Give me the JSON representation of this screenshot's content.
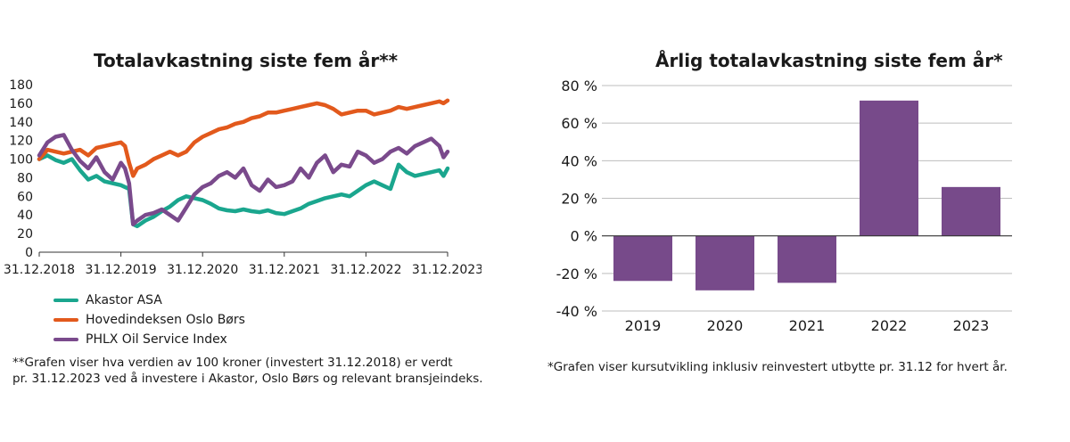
{
  "colors": {
    "teal": "#1aa68e",
    "orange": "#e2591c",
    "purple": "#7a4a8c",
    "bar": "#774a8a",
    "grid": "#bdbdbd",
    "axis": "#333333"
  },
  "left_chart": {
    "title": "Totalavkastning siste fem år**",
    "legend": [
      "Akastor ASA",
      "Hovedindeksen Oslo Børs",
      "PHLX Oil Service Index"
    ],
    "note_line1": "**Grafen viser hva verdien av 100 kroner (investert 31.12.2018) er verdt",
    "note_line2": "pr. 31.12.2023 ved å investere i Akastor, Oslo Børs og relevant bransjeindeks."
  },
  "right_chart": {
    "title": "Årlig totalavkastning siste fem år*",
    "note": "*Grafen viser kursutvikling inklusiv reinvestert utbytte pr. 31.12 for hvert år."
  },
  "chart_data": [
    {
      "type": "line",
      "title": "Totalavkastning siste fem år**",
      "x_labels": [
        "31.12.2018",
        "31.12.2019",
        "31.12.2020",
        "31.12.2021",
        "31.12.2022",
        "31.12.2023"
      ],
      "y_ticks": [
        0,
        20,
        40,
        60,
        80,
        100,
        120,
        140,
        160,
        180
      ],
      "ylim": [
        0,
        180
      ],
      "xlim": [
        0,
        5
      ],
      "series": [
        {
          "name": "Akastor ASA",
          "color": "#1aa68e",
          "x": [
            0,
            0.1,
            0.2,
            0.3,
            0.4,
            0.5,
            0.6,
            0.7,
            0.8,
            0.9,
            1.0,
            1.05,
            1.1,
            1.15,
            1.2,
            1.3,
            1.4,
            1.5,
            1.6,
            1.7,
            1.8,
            1.9,
            2.0,
            2.1,
            2.2,
            2.3,
            2.4,
            2.5,
            2.6,
            2.7,
            2.8,
            2.9,
            3.0,
            3.1,
            3.2,
            3.3,
            3.4,
            3.5,
            3.6,
            3.7,
            3.8,
            3.9,
            4.0,
            4.1,
            4.2,
            4.3,
            4.4,
            4.5,
            4.6,
            4.7,
            4.8,
            4.9,
            4.95,
            5.0
          ],
          "values": [
            100,
            104,
            99,
            96,
            100,
            88,
            78,
            82,
            76,
            74,
            72,
            70,
            68,
            30,
            28,
            34,
            38,
            44,
            49,
            56,
            60,
            58,
            56,
            52,
            47,
            45,
            44,
            46,
            44,
            43,
            45,
            42,
            41,
            44,
            47,
            52,
            55,
            58,
            60,
            62,
            60,
            66,
            72,
            76,
            72,
            68,
            94,
            86,
            82,
            84,
            86,
            88,
            82,
            90
          ]
        },
        {
          "name": "Hovedindeksen Oslo Børs",
          "color": "#e2591c",
          "x": [
            0,
            0.1,
            0.2,
            0.3,
            0.4,
            0.5,
            0.6,
            0.7,
            0.8,
            0.9,
            1.0,
            1.05,
            1.1,
            1.15,
            1.2,
            1.3,
            1.4,
            1.5,
            1.6,
            1.7,
            1.8,
            1.9,
            2.0,
            2.1,
            2.2,
            2.3,
            2.4,
            2.5,
            2.6,
            2.7,
            2.8,
            2.9,
            3.0,
            3.1,
            3.2,
            3.3,
            3.4,
            3.5,
            3.6,
            3.7,
            3.8,
            3.9,
            4.0,
            4.1,
            4.2,
            4.3,
            4.4,
            4.5,
            4.6,
            4.7,
            4.8,
            4.9,
            4.95,
            5.0
          ],
          "values": [
            100,
            110,
            108,
            106,
            108,
            110,
            104,
            112,
            114,
            116,
            118,
            114,
            96,
            82,
            90,
            94,
            100,
            104,
            108,
            104,
            108,
            118,
            124,
            128,
            132,
            134,
            138,
            140,
            144,
            146,
            150,
            150,
            152,
            154,
            156,
            158,
            160,
            158,
            154,
            148,
            150,
            152,
            152,
            148,
            150,
            152,
            156,
            154,
            156,
            158,
            160,
            162,
            160,
            163
          ]
        },
        {
          "name": "PHLX Oil Service Index",
          "color": "#7a4a8c",
          "x": [
            0,
            0.1,
            0.2,
            0.3,
            0.4,
            0.5,
            0.6,
            0.7,
            0.8,
            0.9,
            1.0,
            1.05,
            1.1,
            1.15,
            1.2,
            1.3,
            1.4,
            1.5,
            1.6,
            1.7,
            1.8,
            1.9,
            2.0,
            2.1,
            2.2,
            2.3,
            2.4,
            2.5,
            2.6,
            2.7,
            2.8,
            2.9,
            3.0,
            3.1,
            3.2,
            3.3,
            3.4,
            3.5,
            3.6,
            3.7,
            3.8,
            3.9,
            4.0,
            4.1,
            4.2,
            4.3,
            4.4,
            4.5,
            4.6,
            4.7,
            4.8,
            4.9,
            4.95,
            5.0
          ],
          "values": [
            104,
            118,
            124,
            126,
            110,
            98,
            90,
            102,
            86,
            78,
            96,
            90,
            74,
            30,
            34,
            40,
            42,
            46,
            40,
            34,
            48,
            62,
            70,
            74,
            82,
            86,
            80,
            90,
            72,
            66,
            78,
            70,
            72,
            76,
            90,
            80,
            96,
            104,
            86,
            94,
            92,
            108,
            104,
            96,
            100,
            108,
            112,
            106,
            114,
            118,
            122,
            114,
            102,
            108
          ]
        }
      ]
    },
    {
      "type": "bar",
      "title": "Årlig totalavkastning siste fem år*",
      "categories": [
        "2019",
        "2020",
        "2021",
        "2022",
        "2023"
      ],
      "values": [
        -24,
        -29,
        -25,
        72,
        26
      ],
      "y_ticks": [
        80,
        60,
        40,
        20,
        0,
        -20,
        -40
      ],
      "y_tick_labels": [
        "80 %",
        "60 %",
        "40 %",
        "20 %",
        "0 %",
        "-20 %",
        "-40 %"
      ],
      "ylim": [
        -40,
        80
      ],
      "unit": "%"
    }
  ]
}
